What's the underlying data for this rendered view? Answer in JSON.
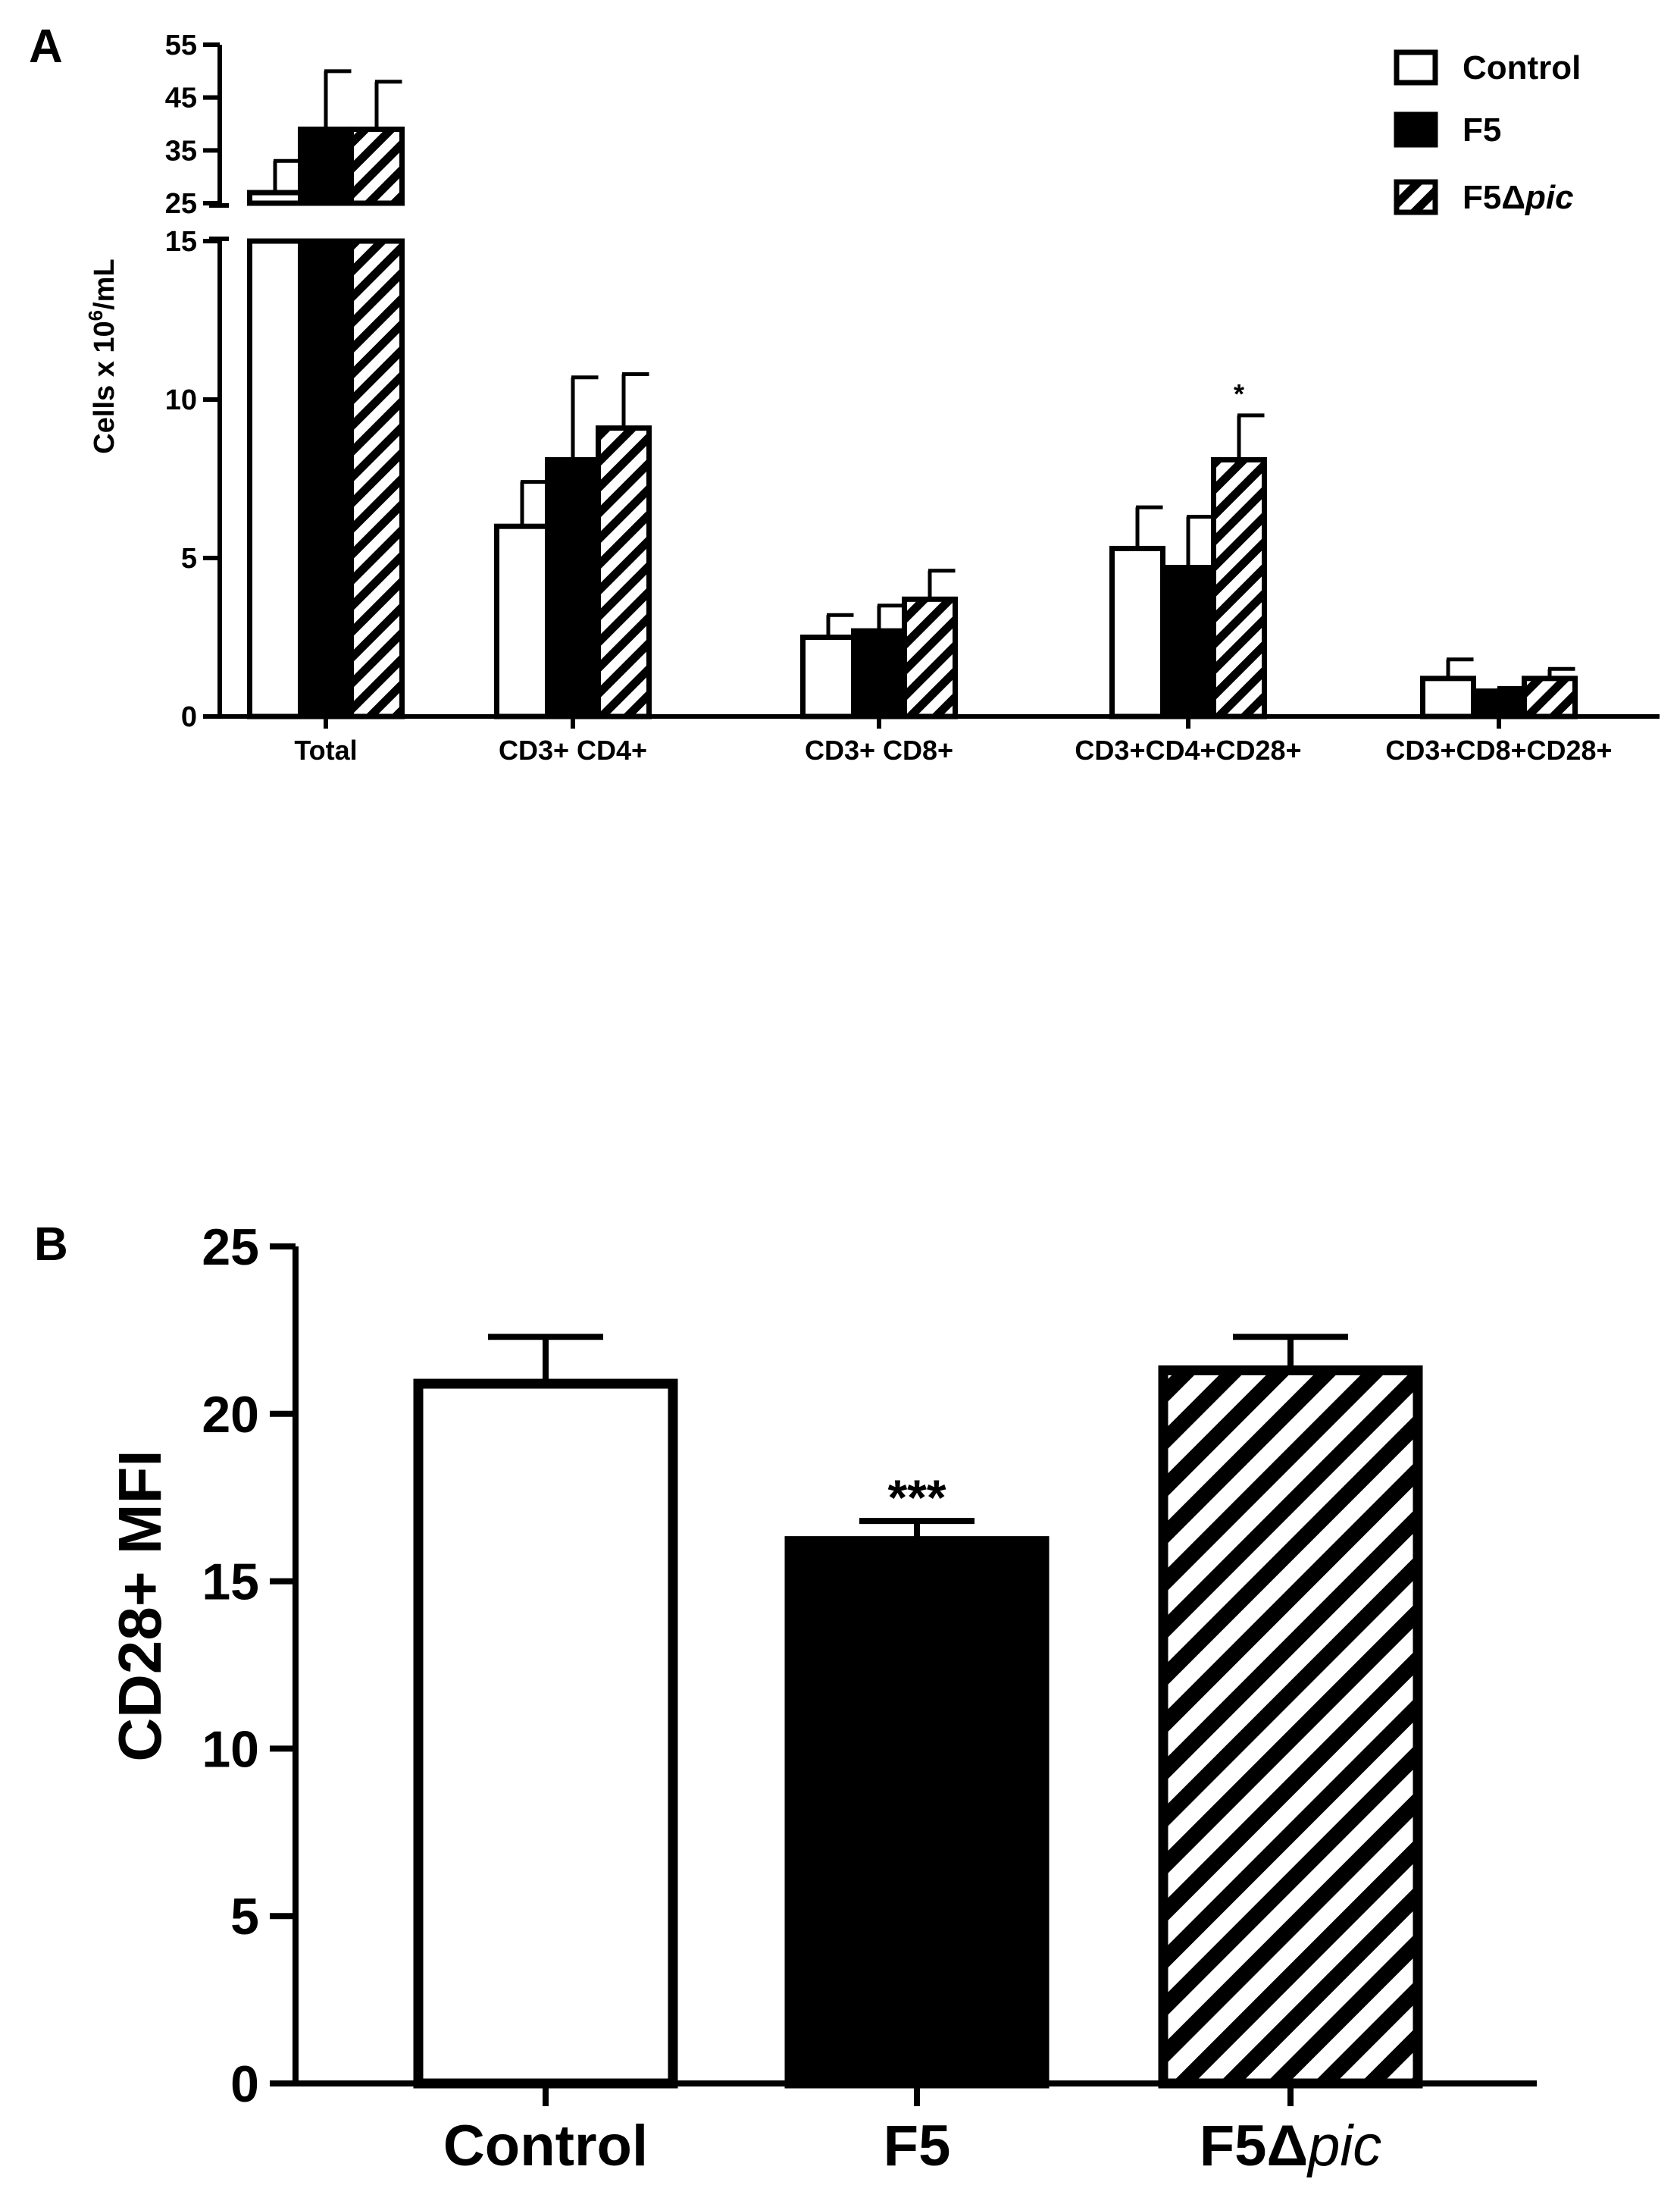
{
  "panel_a_label": "A",
  "panel_b_label": "B",
  "legend": {
    "items": [
      {
        "name": "Control",
        "prefix": "Control",
        "italic": ""
      },
      {
        "name": "F5",
        "prefix": "F5",
        "italic": ""
      },
      {
        "name": "F5Δpic",
        "prefix": "F5Δ",
        "italic": "pic"
      }
    ]
  },
  "panel_a_ylabel": {
    "prefix": "Cells x 10",
    "sup": "6",
    "suffix": "/mL"
  },
  "panel_b_ylabel": "CD28+ MFI",
  "colors": {
    "control": "#ffffff",
    "f5": "#000000",
    "f5dpic_hatch": "#000000",
    "axis": "#000000"
  },
  "chart_data": [
    {
      "type": "bar",
      "panel": "A",
      "ylabel": "Cells x 10^6/mL",
      "categories": [
        "Total",
        "CD3+ CD4+",
        "CD3+ CD8+",
        "CD3+CD4+CD28+",
        "CD3+CD8+CD28+"
      ],
      "series": [
        {
          "name": "Control",
          "values": [
            27,
            6.0,
            2.5,
            5.3,
            1.2
          ],
          "errors": [
            6,
            1.4,
            0.7,
            1.3,
            0.6
          ]
        },
        {
          "name": "F5",
          "values": [
            39,
            8.1,
            2.7,
            4.7,
            0.8
          ],
          "errors": [
            11,
            2.6,
            0.8,
            1.6,
            0.1
          ]
        },
        {
          "name": "F5Δpic",
          "values": [
            39,
            9.1,
            3.7,
            8.1,
            1.2
          ],
          "errors": [
            9,
            1.7,
            0.9,
            1.4,
            0.3
          ]
        }
      ],
      "axis_break": [
        15,
        25
      ],
      "lower_ylim": [
        0,
        15
      ],
      "upper_ylim": [
        25,
        55
      ],
      "lower_ticks": [
        0,
        5,
        10,
        15
      ],
      "upper_ticks": [
        25,
        35,
        45,
        55
      ],
      "annotations": [
        {
          "category": "CD3+CD4+CD28+",
          "series": "F5Δpic",
          "text": "*"
        }
      ],
      "legend_position": "top-right"
    },
    {
      "type": "bar",
      "panel": "B",
      "ylabel": "CD28+ MFI",
      "categories": [
        "Control",
        "F5",
        "F5Δpic"
      ],
      "category_labels": [
        {
          "prefix": "Control",
          "italic": ""
        },
        {
          "prefix": "F5",
          "italic": ""
        },
        {
          "prefix": "F5Δ",
          "italic": "pic"
        }
      ],
      "values": [
        20.9,
        16.2,
        21.3
      ],
      "errors": [
        1.4,
        0.6,
        1.0
      ],
      "ylim": [
        0,
        25
      ],
      "ticks": [
        0,
        5,
        10,
        15,
        20,
        25
      ],
      "annotations": [
        {
          "category": "F5",
          "text": "***"
        }
      ]
    }
  ]
}
